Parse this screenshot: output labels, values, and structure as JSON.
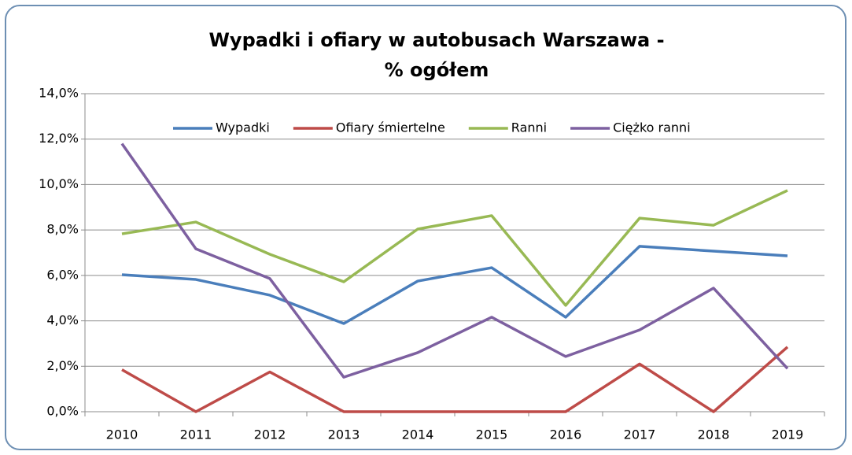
{
  "chart_data": {
    "type": "line",
    "title": [
      "Wypadki i ofiary w autobusach Warszawa -",
      "% ogółem"
    ],
    "categories": [
      "2010",
      "2011",
      "2012",
      "2013",
      "2014",
      "2015",
      "2016",
      "2017",
      "2018",
      "2019"
    ],
    "series": [
      {
        "name": "Wypadki",
        "color": "#4a7ebb",
        "values": [
          6.03,
          5.82,
          5.13,
          3.88,
          5.75,
          6.34,
          4.16,
          7.28,
          7.07,
          6.86
        ]
      },
      {
        "name": "Ofiary śmiertelne",
        "color": "#be4b48",
        "values": [
          1.85,
          0,
          1.75,
          0,
          0,
          0,
          0,
          2.1,
          0,
          2.85
        ]
      },
      {
        "name": "Ranni",
        "color": "#98b954",
        "values": [
          7.83,
          8.35,
          6.93,
          5.72,
          8.04,
          8.63,
          4.68,
          8.52,
          8.21,
          9.74
        ]
      },
      {
        "name": "Ciężko ranni",
        "color": "#7d60a0",
        "values": [
          11.8,
          7.17,
          5.86,
          1.52,
          2.6,
          4.16,
          2.43,
          3.6,
          5.44,
          1.9
        ]
      }
    ],
    "ylim": [
      0,
      14
    ],
    "yticks": [
      {
        "value": 0,
        "label": "0,0%"
      },
      {
        "value": 2,
        "label": "2,0%"
      },
      {
        "value": 4,
        "label": "4,0%"
      },
      {
        "value": 6,
        "label": "6,0%"
      },
      {
        "value": 8,
        "label": "8,0%"
      },
      {
        "value": 10,
        "label": "10,0%"
      },
      {
        "value": 12,
        "label": "12,0%"
      },
      {
        "value": 14,
        "label": "14,0%"
      }
    ],
    "grid": true,
    "legend": "top"
  }
}
